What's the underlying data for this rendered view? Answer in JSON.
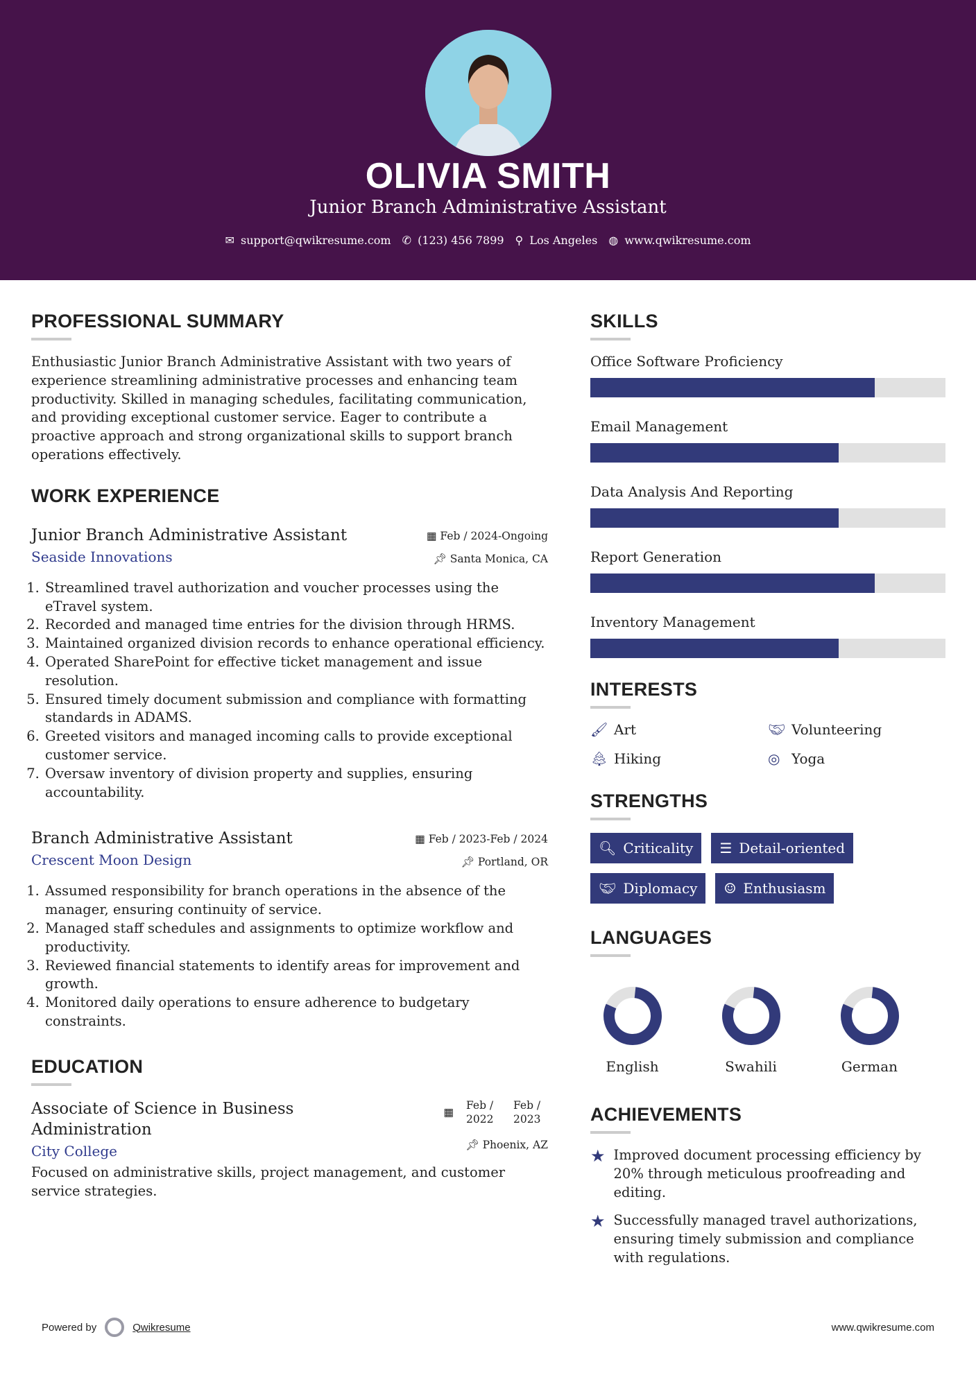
{
  "header": {
    "name": "OLIVIA SMITH",
    "title": "Junior Branch Administrative Assistant",
    "email": "support@qwikresume.com",
    "phone": "(123) 456 7899",
    "location": "Los Angeles",
    "website": "www.qwikresume.com",
    "bg_color": "#46134a"
  },
  "summary": {
    "heading": "PROFESSIONAL SUMMARY",
    "text": "Enthusiastic Junior Branch Administrative Assistant with two years of experience streamlining administrative processes and enhancing team productivity. Skilled in managing schedules, facilitating communication, and providing exceptional customer service. Eager to contribute a proactive approach and strong organizational skills to support branch operations effectively."
  },
  "work": {
    "heading": "WORK EXPERIENCE",
    "jobs": [
      {
        "title": "Junior Branch Administrative Assistant",
        "company": "Seaside Innovations",
        "dates": "Feb / 2024-Ongoing",
        "location": "Santa Monica, CA",
        "bullets": [
          "Streamlined travel authorization and voucher processes using the eTravel system.",
          "Recorded and managed time entries for the division through HRMS.",
          "Maintained organized division records to enhance operational efficiency.",
          "Operated SharePoint for effective ticket management and issue resolution.",
          "Ensured timely document submission and compliance with formatting standards in ADAMS.",
          "Greeted visitors and managed incoming calls to provide exceptional customer service.",
          "Oversaw inventory of division property and supplies, ensuring accountability."
        ]
      },
      {
        "title": "Branch Administrative Assistant",
        "company": "Crescent Moon Design",
        "dates": "Feb / 2023-Feb / 2024",
        "location": "Portland, OR",
        "bullets": [
          "Assumed responsibility for branch operations in the absence of the manager, ensuring continuity of service.",
          "Managed staff schedules and assignments to optimize workflow and productivity.",
          "Reviewed financial statements to identify areas for improvement and growth.",
          "Monitored daily operations to ensure adherence to budgetary constraints."
        ]
      }
    ]
  },
  "education": {
    "heading": "EDUCATION",
    "degree": "Associate of Science in Business Administration",
    "school": "City College",
    "start": "Feb / 2022",
    "end": "Feb / 2023",
    "location": "Phoenix, AZ",
    "description": "Focused on administrative skills, project management, and customer service strategies."
  },
  "skills": {
    "heading": "SKILLS",
    "items": [
      {
        "name": "Office Software Proficiency",
        "level": 80
      },
      {
        "name": "Email Management",
        "level": 70
      },
      {
        "name": "Data Analysis And Reporting",
        "level": 70
      },
      {
        "name": "Report Generation",
        "level": 80
      },
      {
        "name": "Inventory Management",
        "level": 70
      }
    ]
  },
  "interests": {
    "heading": "INTERESTS",
    "items": [
      {
        "name": "Art",
        "icon": "paintbrush-icon"
      },
      {
        "name": "Volunteering",
        "icon": "handshake-icon"
      },
      {
        "name": "Hiking",
        "icon": "tree-icon"
      },
      {
        "name": "Yoga",
        "icon": "lifering-icon"
      }
    ]
  },
  "strengths": {
    "heading": "STRENGTHS",
    "items": [
      {
        "name": "Criticality",
        "icon": "search-icon"
      },
      {
        "name": "Detail-oriented",
        "icon": "list-icon"
      },
      {
        "name": "Diplomacy",
        "icon": "handshake-icon"
      },
      {
        "name": "Enthusiasm",
        "icon": "smile-icon"
      }
    ]
  },
  "languages": {
    "heading": "LANGUAGES",
    "items": [
      {
        "name": "English",
        "level": 80
      },
      {
        "name": "Swahili",
        "level": 80
      },
      {
        "name": "German",
        "level": 80
      }
    ]
  },
  "achievements": {
    "heading": "ACHIEVEMENTS",
    "items": [
      "Improved document processing efficiency by 20% through meticulous proofreading and editing.",
      "Successfully managed travel authorizations, ensuring timely submission and compliance with regulations."
    ]
  },
  "footer": {
    "powered_by": "Powered by",
    "brand": "Qwikresume",
    "website": "www.qwikresume.com"
  },
  "colors": {
    "accent": "#323a7a",
    "track": "#e1e1e1",
    "company": "#2f3a8c"
  }
}
